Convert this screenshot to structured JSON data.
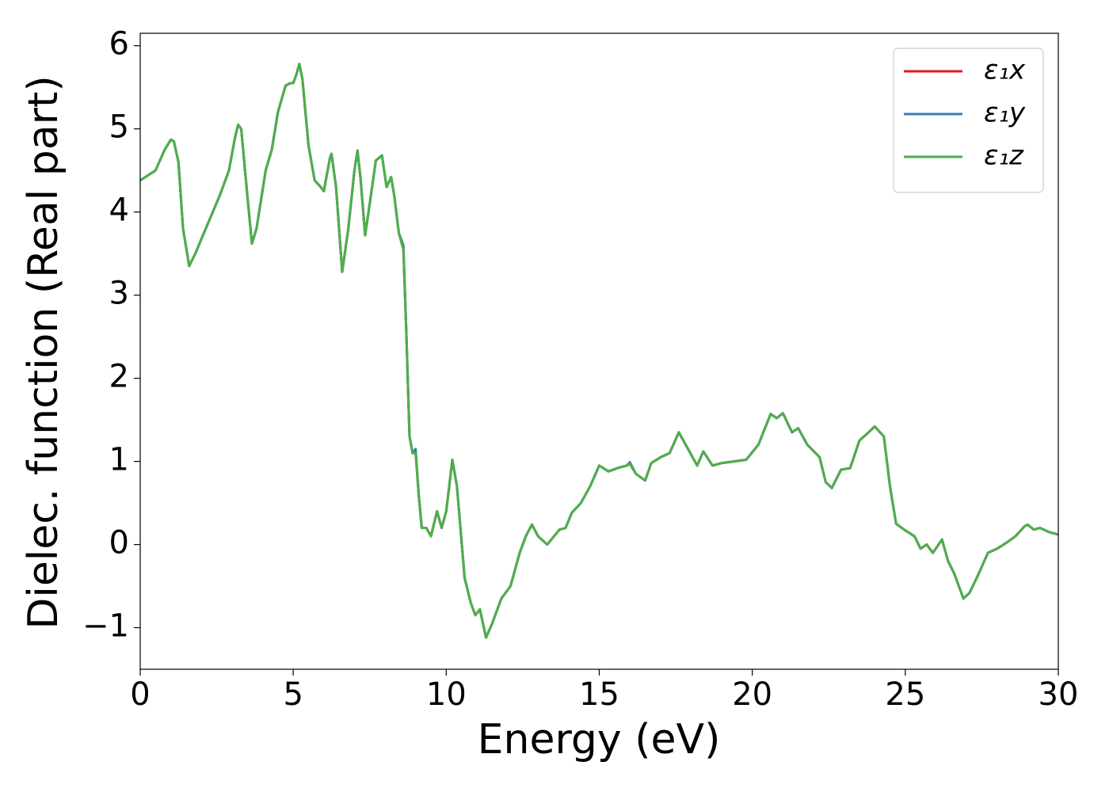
{
  "chart_data": {
    "type": "line",
    "xlabel": "Energy (eV)",
    "ylabel": "Dielec. function (Real part)",
    "xlim": [
      0,
      30
    ],
    "ylim": [
      -1.5,
      6.15
    ],
    "xticks": [
      0,
      5,
      10,
      15,
      20,
      25,
      30
    ],
    "yticks": [
      {
        "value": -1,
        "label": "−1"
      },
      0,
      1,
      2,
      3,
      4,
      5,
      6
    ],
    "legend": "upper right",
    "grid": false,
    "x": [
      0,
      0.5,
      0.8,
      1.0,
      1.1,
      1.25,
      1.4,
      1.6,
      1.8,
      2.2,
      2.6,
      2.9,
      3.1,
      3.2,
      3.3,
      3.5,
      3.65,
      3.8,
      4.1,
      4.3,
      4.5,
      4.75,
      4.9,
      5.0,
      5.1,
      5.2,
      5.3,
      5.5,
      5.7,
      5.9,
      6.0,
      6.2,
      6.25,
      6.4,
      6.6,
      6.8,
      7.0,
      7.1,
      7.2,
      7.35,
      7.5,
      7.7,
      7.9,
      8.05,
      8.2,
      8.3,
      8.45,
      8.6,
      8.7,
      8.8,
      8.9,
      9.0,
      9.1,
      9.2,
      9.35,
      9.5,
      9.7,
      9.85,
      10.0,
      10.2,
      10.35,
      10.6,
      10.8,
      10.95,
      11.1,
      11.3,
      11.5,
      11.8,
      12.1,
      12.4,
      12.6,
      12.8,
      13.0,
      13.3,
      13.7,
      13.9,
      14.1,
      14.4,
      14.7,
      15.0,
      15.3,
      15.6,
      15.9,
      16.0,
      16.2,
      16.5,
      16.7,
      17.0,
      17.3,
      17.6,
      17.9,
      18.2,
      18.4,
      18.7,
      19.0,
      19.4,
      19.8,
      20.2,
      20.6,
      20.8,
      21.0,
      21.3,
      21.5,
      21.8,
      22.2,
      22.4,
      22.6,
      22.9,
      23.2,
      23.5,
      23.8,
      24.0,
      24.3,
      24.5,
      24.7,
      25.0,
      25.3,
      25.5,
      25.7,
      25.9,
      26.2,
      26.4,
      26.6,
      26.9,
      27.1,
      27.4,
      27.7,
      28.0,
      28.3,
      28.6,
      28.9,
      29.0,
      29.2,
      29.4,
      29.7,
      30.0
    ],
    "series": [
      {
        "name": "ε₁x",
        "color": "#e41a1c",
        "values": [
          4.38,
          4.5,
          4.75,
          4.87,
          4.85,
          4.6,
          3.8,
          3.35,
          3.5,
          3.85,
          4.2,
          4.5,
          4.9,
          5.05,
          5.0,
          4.2,
          3.62,
          3.8,
          4.5,
          4.75,
          5.2,
          5.52,
          5.55,
          5.55,
          5.65,
          5.78,
          5.6,
          4.8,
          4.38,
          4.3,
          4.25,
          4.65,
          4.7,
          4.3,
          3.28,
          3.8,
          4.5,
          4.74,
          4.4,
          3.72,
          4.1,
          4.62,
          4.68,
          4.3,
          4.42,
          4.2,
          3.75,
          3.55,
          2.5,
          1.3,
          1.1,
          1.1,
          0.6,
          0.2,
          0.2,
          0.1,
          0.4,
          0.2,
          0.4,
          1.02,
          0.7,
          -0.4,
          -0.7,
          -0.85,
          -0.78,
          -1.12,
          -0.95,
          -0.65,
          -0.5,
          -0.1,
          0.1,
          0.24,
          0.1,
          0.0,
          0.18,
          0.2,
          0.38,
          0.5,
          0.7,
          0.95,
          0.88,
          0.92,
          0.95,
          0.97,
          0.85,
          0.77,
          0.98,
          1.05,
          1.1,
          1.35,
          1.15,
          0.95,
          1.12,
          0.95,
          0.98,
          1.0,
          1.02,
          1.2,
          1.57,
          1.52,
          1.58,
          1.35,
          1.4,
          1.2,
          1.05,
          0.75,
          0.68,
          0.9,
          0.92,
          1.25,
          1.35,
          1.42,
          1.3,
          0.7,
          0.25,
          0.17,
          0.1,
          -0.05,
          0.0,
          -0.1,
          0.06,
          -0.2,
          -0.35,
          -0.65,
          -0.58,
          -0.35,
          -0.1,
          -0.05,
          0.02,
          0.1,
          0.22,
          0.24,
          0.18,
          0.2,
          0.15,
          0.12
        ]
      },
      {
        "name": "ε₁y",
        "color": "#377eb8",
        "values": [
          4.38,
          4.5,
          4.75,
          4.87,
          4.85,
          4.6,
          3.8,
          3.35,
          3.5,
          3.85,
          4.2,
          4.5,
          4.9,
          5.05,
          5.0,
          4.2,
          3.62,
          3.8,
          4.5,
          4.75,
          5.2,
          5.52,
          5.55,
          5.55,
          5.65,
          5.78,
          5.6,
          4.8,
          4.38,
          4.3,
          4.25,
          4.65,
          4.7,
          4.3,
          3.28,
          3.8,
          4.5,
          4.74,
          4.4,
          3.72,
          4.1,
          4.62,
          4.68,
          4.3,
          4.42,
          4.2,
          3.75,
          3.6,
          2.5,
          1.3,
          1.1,
          1.15,
          0.6,
          0.2,
          0.2,
          0.1,
          0.4,
          0.2,
          0.4,
          1.02,
          0.7,
          -0.4,
          -0.7,
          -0.85,
          -0.78,
          -1.12,
          -0.95,
          -0.65,
          -0.5,
          -0.1,
          0.1,
          0.24,
          0.1,
          0.0,
          0.18,
          0.2,
          0.38,
          0.5,
          0.7,
          0.95,
          0.88,
          0.92,
          0.95,
          0.99,
          0.85,
          0.77,
          0.98,
          1.05,
          1.1,
          1.35,
          1.15,
          0.95,
          1.12,
          0.95,
          0.98,
          1.0,
          1.02,
          1.2,
          1.57,
          1.52,
          1.58,
          1.35,
          1.4,
          1.2,
          1.05,
          0.75,
          0.68,
          0.9,
          0.92,
          1.25,
          1.35,
          1.42,
          1.3,
          0.7,
          0.25,
          0.17,
          0.1,
          -0.05,
          0.0,
          -0.1,
          0.06,
          -0.2,
          -0.35,
          -0.65,
          -0.58,
          -0.35,
          -0.1,
          -0.05,
          0.02,
          0.1,
          0.22,
          0.24,
          0.18,
          0.2,
          0.15,
          0.12
        ]
      },
      {
        "name": "ε₁z",
        "color": "#4daf4a",
        "values": [
          4.38,
          4.5,
          4.75,
          4.87,
          4.85,
          4.6,
          3.8,
          3.35,
          3.5,
          3.85,
          4.2,
          4.5,
          4.9,
          5.05,
          5.0,
          4.2,
          3.62,
          3.8,
          4.5,
          4.75,
          5.2,
          5.52,
          5.55,
          5.55,
          5.65,
          5.78,
          5.6,
          4.8,
          4.38,
          4.3,
          4.25,
          4.65,
          4.7,
          4.3,
          3.28,
          3.8,
          4.5,
          4.74,
          4.4,
          3.72,
          4.1,
          4.62,
          4.68,
          4.3,
          4.42,
          4.2,
          3.75,
          3.55,
          2.5,
          1.3,
          1.1,
          1.1,
          0.6,
          0.2,
          0.2,
          0.1,
          0.4,
          0.2,
          0.4,
          1.02,
          0.7,
          -0.4,
          -0.7,
          -0.85,
          -0.78,
          -1.12,
          -0.95,
          -0.65,
          -0.5,
          -0.1,
          0.1,
          0.24,
          0.1,
          0.0,
          0.18,
          0.2,
          0.38,
          0.5,
          0.7,
          0.95,
          0.88,
          0.92,
          0.95,
          0.97,
          0.85,
          0.77,
          0.98,
          1.05,
          1.1,
          1.35,
          1.15,
          0.95,
          1.12,
          0.95,
          0.98,
          1.0,
          1.02,
          1.2,
          1.57,
          1.52,
          1.58,
          1.35,
          1.4,
          1.2,
          1.05,
          0.75,
          0.68,
          0.9,
          0.92,
          1.25,
          1.35,
          1.42,
          1.3,
          0.7,
          0.25,
          0.17,
          0.1,
          -0.05,
          0.0,
          -0.1,
          0.06,
          -0.2,
          -0.35,
          -0.65,
          -0.58,
          -0.35,
          -0.1,
          -0.05,
          0.02,
          0.1,
          0.22,
          0.24,
          0.18,
          0.2,
          0.15,
          0.12
        ]
      }
    ]
  }
}
